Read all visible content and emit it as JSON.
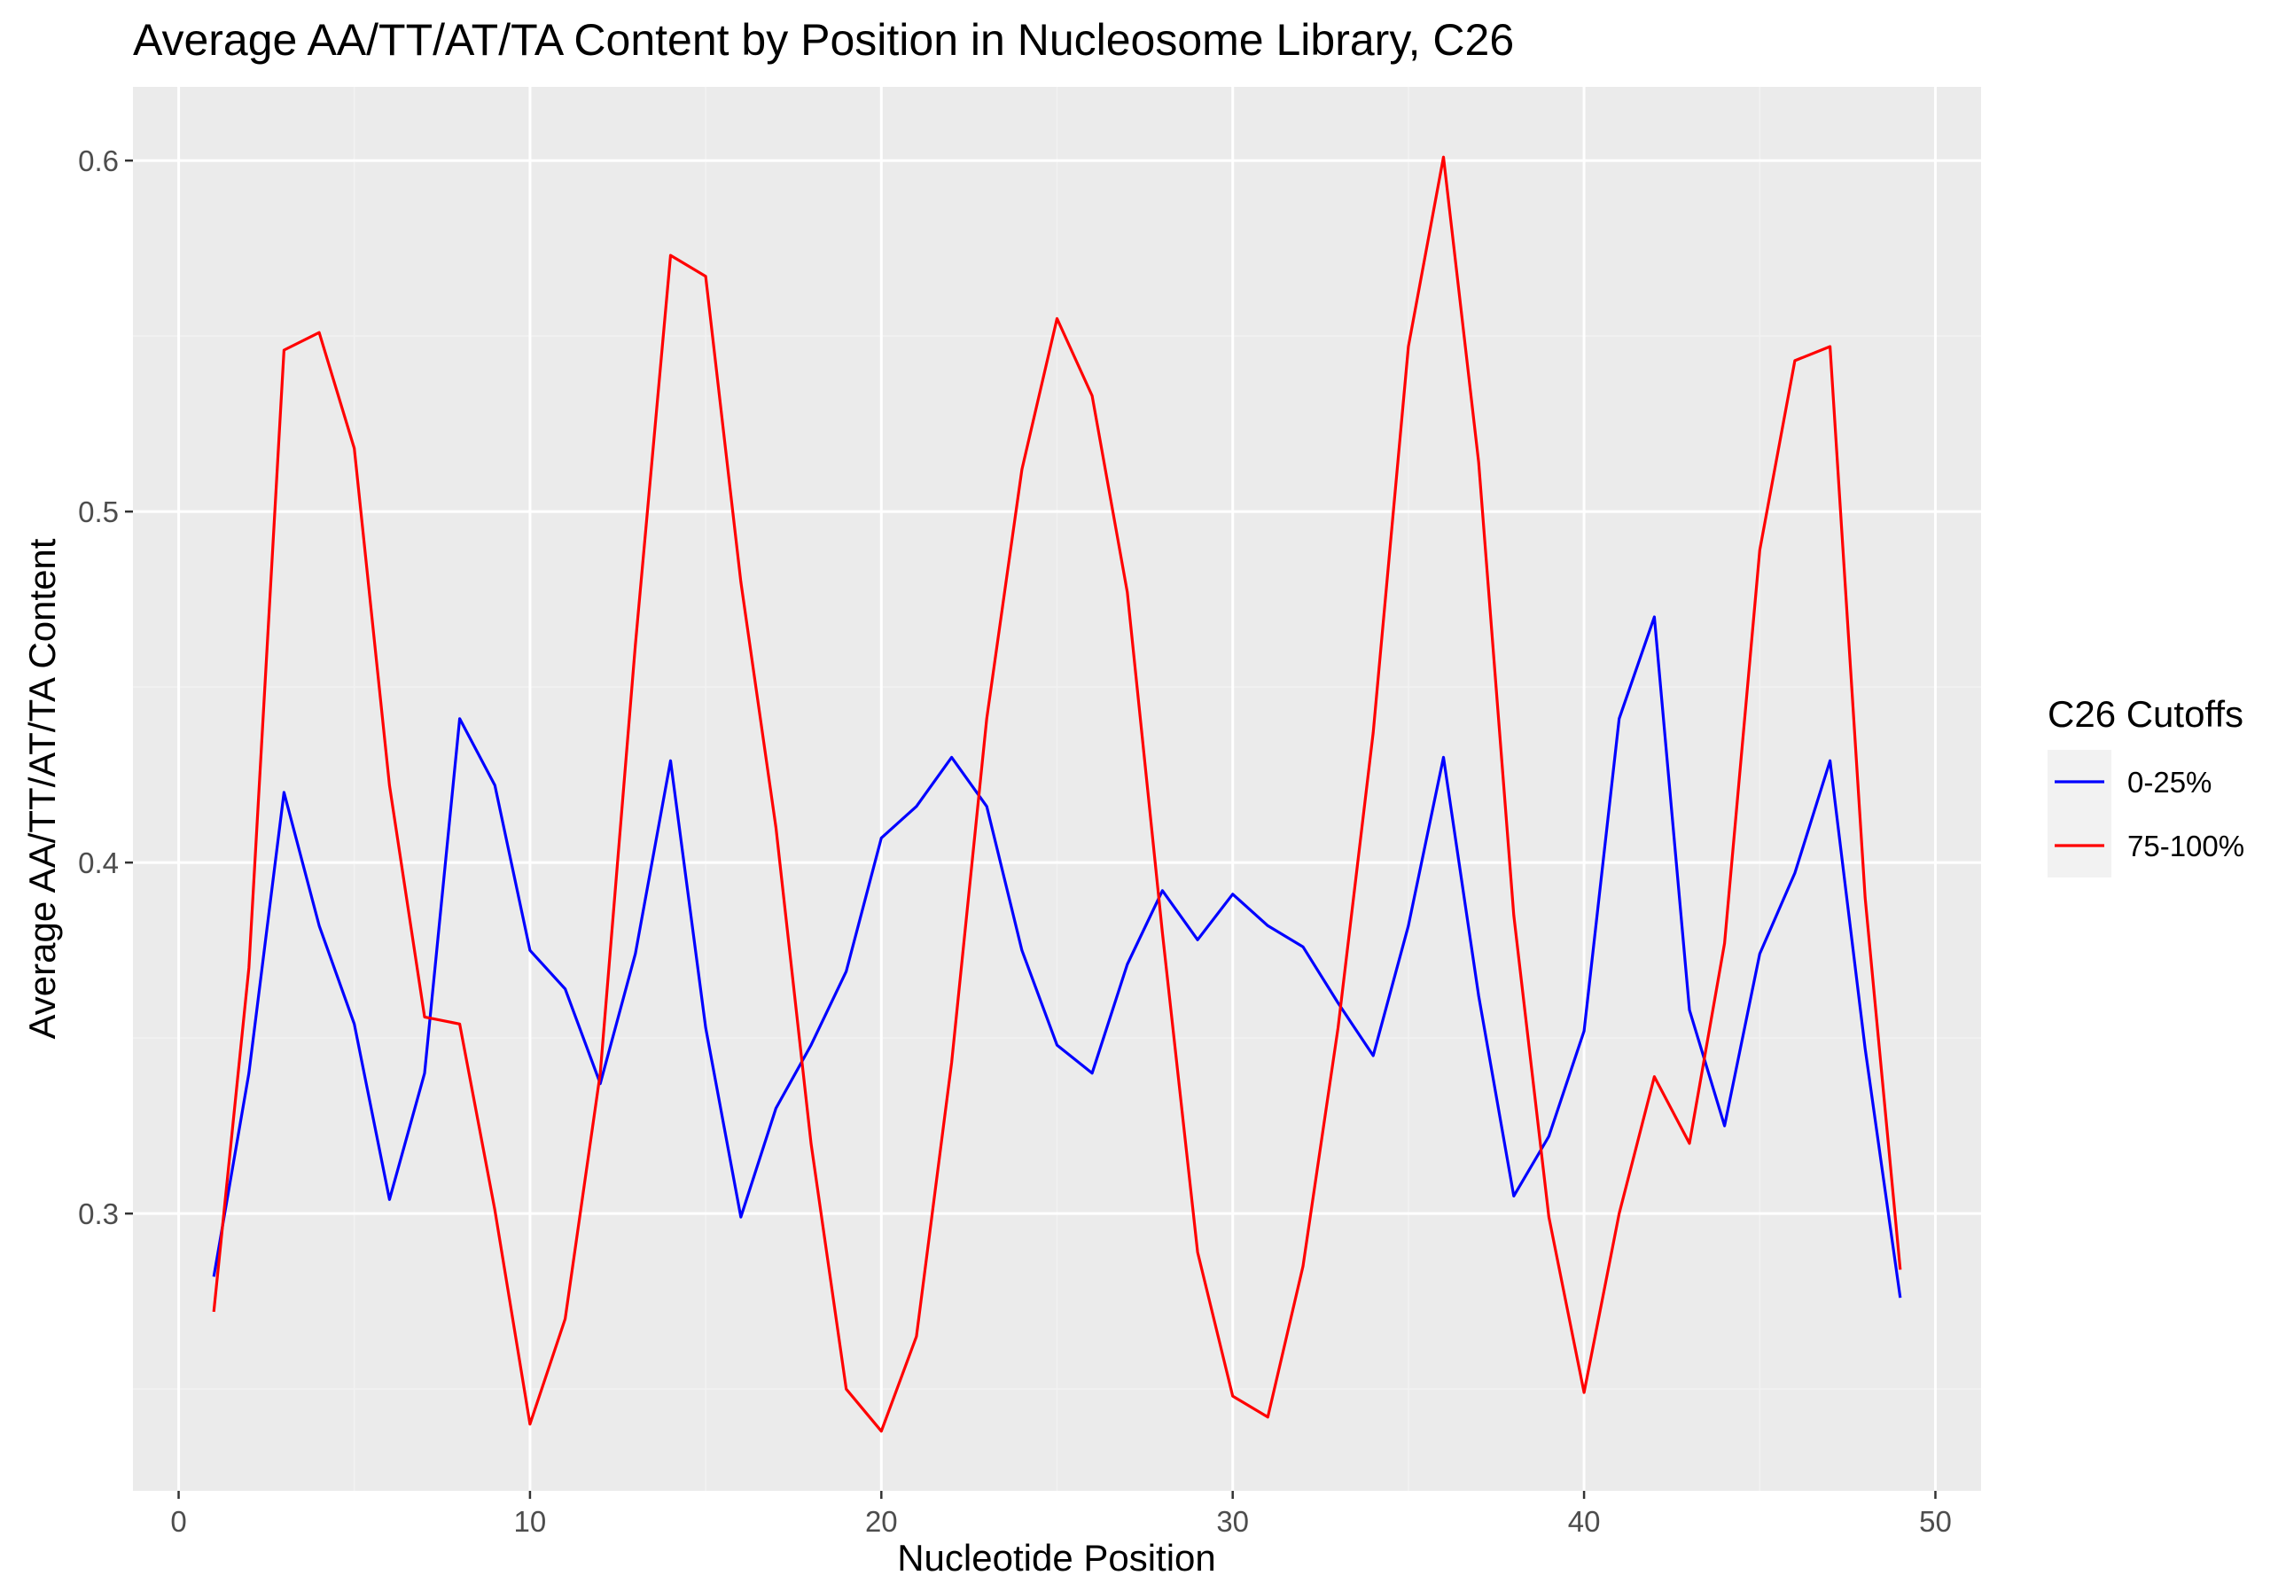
{
  "chart_data": {
    "type": "line",
    "title": "Average AA/TT/AT/TA Content by Position in Nucleosome Library, C26",
    "xlabel": "Nucleotide Position",
    "ylabel": "Average AA/TT/AT/TA Content",
    "xlim": [
      -1.3,
      51.3
    ],
    "ylim": [
      0.221,
      0.621
    ],
    "x_ticks": [
      0,
      10,
      20,
      30,
      40,
      50
    ],
    "x_tick_labels": [
      "0",
      "10",
      "20",
      "30",
      "40",
      "50"
    ],
    "y_ticks": [
      0.3,
      0.4,
      0.5,
      0.6
    ],
    "y_tick_labels": [
      "0.3",
      "0.4",
      "0.5",
      "0.6"
    ],
    "grid": true,
    "legend": {
      "title": "C26 Cutoffs",
      "position": "right"
    },
    "x": [
      1,
      2,
      3,
      4,
      5,
      6,
      7,
      8,
      9,
      10,
      11,
      12,
      13,
      14,
      15,
      16,
      17,
      18,
      19,
      20,
      21,
      22,
      23,
      24,
      25,
      26,
      27,
      28,
      29,
      30,
      31,
      32,
      33,
      34,
      35,
      36,
      37,
      38,
      39,
      40,
      41,
      42,
      43,
      44,
      45,
      46,
      47,
      48,
      49
    ],
    "series": [
      {
        "name": "0-25%",
        "color": "#0000ff",
        "values": [
          0.282,
          0.34,
          0.42,
          0.382,
          0.354,
          0.304,
          0.34,
          0.441,
          0.422,
          0.375,
          0.364,
          0.337,
          0.374,
          0.429,
          0.353,
          0.299,
          0.33,
          0.348,
          0.369,
          0.407,
          0.416,
          0.43,
          0.416,
          0.375,
          0.348,
          0.34,
          0.371,
          0.392,
          0.378,
          0.391,
          0.382,
          0.376,
          0.36,
          0.345,
          0.382,
          0.43,
          0.362,
          0.305,
          0.322,
          0.352,
          0.441,
          0.47,
          0.358,
          0.325,
          0.374,
          0.397,
          0.429,
          0.347,
          0.276
        ]
      },
      {
        "name": "75-100%",
        "color": "#ff0000",
        "values": [
          0.272,
          0.37,
          0.546,
          0.551,
          0.518,
          0.422,
          0.356,
          0.354,
          0.301,
          0.24,
          0.27,
          0.34,
          0.462,
          0.573,
          0.567,
          0.48,
          0.41,
          0.32,
          0.25,
          0.238,
          0.265,
          0.343,
          0.441,
          0.512,
          0.555,
          0.533,
          0.477,
          0.38,
          0.289,
          0.248,
          0.242,
          0.285,
          0.353,
          0.437,
          0.547,
          0.601,
          0.514,
          0.385,
          0.299,
          0.249,
          0.3,
          0.339,
          0.32,
          0.377,
          0.489,
          0.543,
          0.547,
          0.39,
          0.284
        ]
      }
    ]
  },
  "colors": {
    "panel_background": "#ebebeb",
    "grid_major": "#ffffff",
    "grid_minor": "#f2f2f2",
    "legend_key_background": "#f2f2f2"
  }
}
